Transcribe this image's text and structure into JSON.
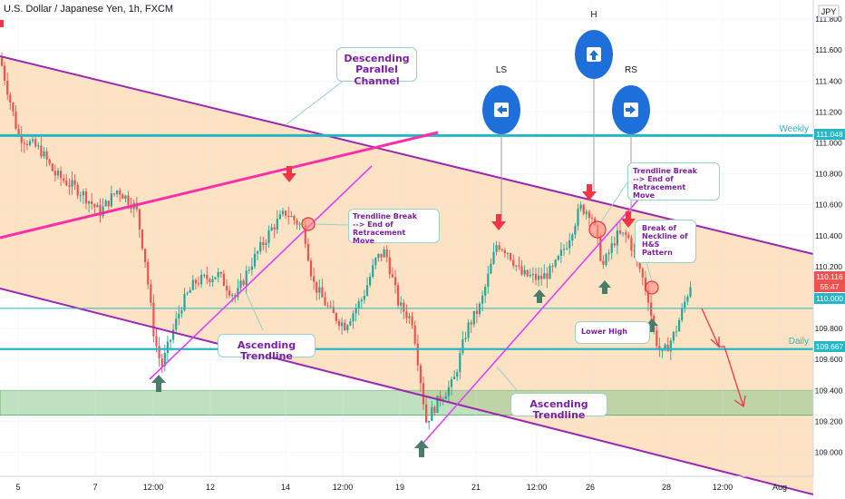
{
  "header": {
    "title": "U.S. Dollar / Japanese Yen, 1h, FXCM"
  },
  "axis_currency": "JPY",
  "colors": {
    "up": "#26a69a",
    "down": "#ef5350",
    "channel_fill": "#fde3c4",
    "channel_line": "#9c27b0",
    "trend_magenta": "#e040fb",
    "pink_line": "#ff2da8",
    "level_teal": "#26b6c6",
    "zone_green": "#8bc98f",
    "arrow_red": "#f23645",
    "arrow_green": "#4a7c6b",
    "badge_blue": "#1e6fd9",
    "label_purple": "#7b1fa2"
  },
  "chart_data": {
    "type": "candlestick",
    "symbol": "U.S. Dollar / Japanese Yen",
    "interval": "1h",
    "source": "FXCM",
    "y_range": [
      108.7,
      111.95
    ],
    "y_ticks": [
      "111.800",
      "111.600",
      "111.400",
      "111.200",
      "111.000",
      "110.800",
      "110.600",
      "110.400",
      "110.200",
      "110.000",
      "109.800",
      "109.600",
      "109.400",
      "109.200",
      "109.000"
    ],
    "x_ticks": [
      "5",
      "7",
      "12:00",
      "12",
      "14",
      "12:00",
      "19",
      "21",
      "12:00",
      "26",
      "28",
      "12:00",
      "Aug"
    ],
    "price_tags": [
      {
        "label": "111.048",
        "value": 111.048,
        "color": "#26b6c6"
      },
      {
        "label": "110.116",
        "value": 110.116,
        "color": "#ef5350"
      },
      {
        "label": "55:47",
        "value": 110.02,
        "color": "#ef5350"
      },
      {
        "label": "110.000",
        "value": 109.93,
        "color": "#26b6c6"
      },
      {
        "label": "109.667",
        "value": 109.667,
        "color": "#26b6c6"
      }
    ],
    "levels": [
      {
        "name": "Weekly",
        "value": 111.048
      },
      {
        "name": "Daily",
        "value": 109.667
      }
    ],
    "support_zone": [
      109.24,
      109.4
    ],
    "last_price": 110.116,
    "countdown": "55:47"
  },
  "annotations": {
    "channel_label": "Descending\nParallel Channel",
    "trendline_break_1": "Trendline Break\n--> End of Retracement\nMove",
    "trendline_break_2": "Trendline Break\n--> End of Retracement\nMove",
    "ascending_1": "Ascending Trendline",
    "ascending_2": "Ascending Trendline",
    "neckline_break": "Break of\nNeckline of\nH&S Pattern",
    "lower_high": "Lower High",
    "ls": "LS",
    "h": "H",
    "rs": "RS"
  }
}
